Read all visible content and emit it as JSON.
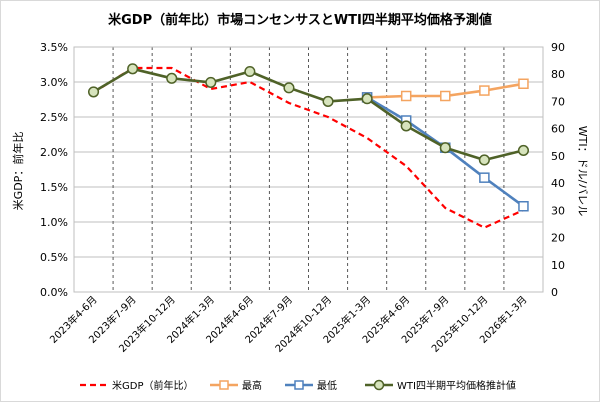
{
  "chart_data": {
    "type": "line",
    "title": "米GDP（前年比）市場コンセンサスとWTI四半期平均価格予測値",
    "xlabel": "",
    "ylabel": "米GDP：前年比",
    "y2label": "WTI：ドル/バレル",
    "categories": [
      "2023年4-6月",
      "2023年7-9月",
      "2023年10-12月",
      "2024年1-3月",
      "2024年4-6月",
      "2024年7-9月",
      "2024年10-12月",
      "2025年1-3月",
      "2025年4-6月",
      "2025年7-9月",
      "2025年10-12月",
      "2026年1-3月"
    ],
    "ylim": [
      0,
      3.5
    ],
    "y2lim": [
      0,
      90
    ],
    "yticks": [
      "0.0%",
      "0.5%",
      "1.0%",
      "1.5%",
      "2.0%",
      "2.5%",
      "3.0%",
      "3.5%"
    ],
    "y2ticks": [
      "0",
      "10",
      "20",
      "30",
      "40",
      "50",
      "60",
      "70",
      "80",
      "90"
    ],
    "grid": true,
    "legend": "bottom",
    "series": [
      {
        "name": "米GDP（前年比）",
        "axis": "left",
        "style": "dashed",
        "color": "#ff0000",
        "marker": "none",
        "values": [
          2.85,
          3.2,
          3.2,
          2.9,
          3.0,
          2.7,
          2.5,
          2.2,
          1.8,
          1.2,
          0.92,
          1.17
        ]
      },
      {
        "name": "最高",
        "axis": "right",
        "style": "solid",
        "color": "#f4a460",
        "marker": "square",
        "values": [
          null,
          null,
          null,
          null,
          null,
          null,
          null,
          71.5,
          72,
          72,
          74,
          76.5
        ]
      },
      {
        "name": "最低",
        "axis": "right",
        "style": "solid",
        "color": "#4f81bd",
        "marker": "square",
        "values": [
          null,
          null,
          null,
          null,
          null,
          null,
          null,
          71.5,
          63,
          53,
          42,
          31.5
        ]
      },
      {
        "name": "WTI四半期平均価格推計値",
        "axis": "right",
        "style": "solid",
        "color": "#4f6228",
        "marker": "circle",
        "values": [
          73.5,
          82,
          78.5,
          77,
          81,
          75,
          70,
          71,
          61,
          53,
          48.5,
          52
        ]
      }
    ]
  }
}
